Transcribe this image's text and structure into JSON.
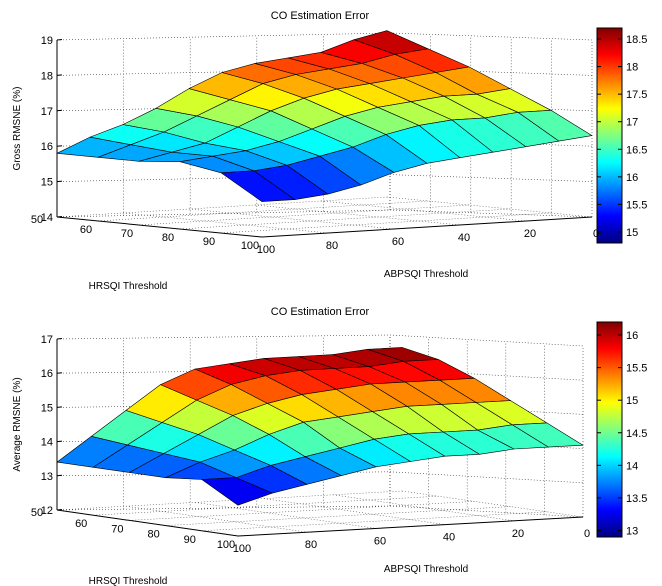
{
  "chart_data": [
    {
      "type": "surface",
      "title": "CO Estimation Error",
      "zlabel": "Gross RMSNE (%)",
      "ylabel": "HRSQI Threshold",
      "xlabel": "ABPSQI Threshold",
      "zlim": [
        14,
        19
      ],
      "z_ticks": [
        "14",
        "15",
        "16",
        "17",
        "18",
        "19"
      ],
      "hrsqi_ticks": [
        "50",
        "60",
        "70",
        "80",
        "90",
        "100"
      ],
      "abpsqi_ticks": [
        "100",
        "80",
        "60",
        "40",
        "20",
        "0"
      ],
      "colorbar": {
        "range": [
          14.8,
          18.7
        ],
        "ticks": [
          "15",
          "15.5",
          "16",
          "16.5",
          "17",
          "17.5",
          "18",
          "18.5"
        ]
      },
      "hrsqi": [
        50,
        60,
        70,
        80,
        90,
        100
      ],
      "abpsqi": [
        100,
        90,
        80,
        70,
        60,
        50,
        40,
        30,
        20,
        10,
        0
      ],
      "z": [
        [
          15.8,
          16.2,
          16.5,
          16.9,
          17.4,
          17.8,
          18.0,
          18.1,
          18.2,
          18.5,
          18.7
        ],
        [
          15.8,
          16.1,
          16.4,
          16.8,
          17.2,
          17.6,
          17.8,
          17.9,
          18.0,
          18.2,
          18.3
        ],
        [
          15.8,
          16.0,
          16.2,
          16.6,
          17.0,
          17.3,
          17.5,
          17.6,
          17.7,
          17.8,
          17.9
        ],
        [
          15.9,
          16.0,
          16.1,
          16.3,
          16.6,
          16.9,
          17.1,
          17.2,
          17.3,
          17.3,
          17.4
        ],
        [
          15.7,
          15.7,
          15.8,
          16.0,
          16.2,
          16.5,
          16.7,
          16.8,
          16.8,
          16.9,
          16.9
        ],
        [
          15.0,
          15.0,
          15.1,
          15.3,
          15.6,
          15.8,
          15.9,
          16.0,
          16.1,
          16.2,
          16.3
        ]
      ]
    },
    {
      "type": "surface",
      "title": "CO Estimation Error",
      "zlabel": "Average RMSNE (%)",
      "ylabel": "HRSQI Threshold",
      "xlabel": "ABPSQI Threshold",
      "zlim": [
        12,
        17
      ],
      "z_ticks": [
        "12",
        "13",
        "14",
        "15",
        "16",
        "17"
      ],
      "hrsqi_ticks": [
        "50",
        "60",
        "70",
        "80",
        "90",
        "100"
      ],
      "abpsqi_ticks": [
        "100",
        "80",
        "60",
        "40",
        "20",
        "0"
      ],
      "colorbar": {
        "range": [
          12.9,
          16.2
        ],
        "ticks": [
          "13",
          "13.5",
          "14",
          "14.5",
          "15",
          "15.5",
          "16"
        ]
      },
      "hrsqi": [
        50,
        60,
        70,
        80,
        90,
        100
      ],
      "abpsqi": [
        100,
        90,
        80,
        70,
        60,
        50,
        40,
        30,
        20,
        10,
        0
      ],
      "z": [
        [
          13.4,
          14.1,
          14.8,
          15.5,
          15.9,
          16.0,
          16.1,
          16.1,
          16.1,
          16.2,
          16.2
        ],
        [
          13.4,
          14.0,
          14.6,
          15.2,
          15.6,
          15.8,
          15.9,
          15.9,
          15.9,
          16.0,
          16.0
        ],
        [
          13.4,
          13.9,
          14.4,
          14.9,
          15.2,
          15.4,
          15.5,
          15.6,
          15.6,
          15.6,
          15.6
        ],
        [
          13.4,
          13.8,
          14.1,
          14.5,
          14.8,
          14.9,
          15.0,
          15.1,
          15.1,
          15.1,
          15.1
        ],
        [
          13.5,
          13.5,
          13.8,
          14.0,
          14.2,
          14.4,
          14.5,
          14.5,
          14.5,
          14.6,
          14.6
        ],
        [
          12.9,
          13.2,
          13.4,
          13.6,
          13.8,
          13.9,
          14.0,
          14.0,
          14.1,
          14.1,
          14.1
        ]
      ]
    }
  ]
}
